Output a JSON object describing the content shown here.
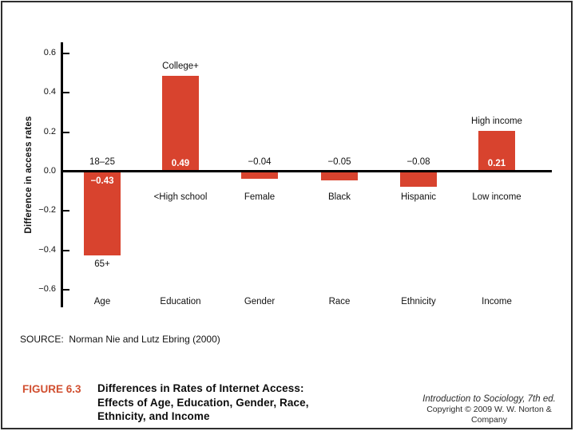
{
  "slide": {
    "source_line": "SOURCE:  Norman Nie and Lutz Ebring (2000)",
    "caption": {
      "figure_label": "FIGURE 6.3",
      "title": "Differences in Rates of Internet Access: Effects of Age, Education, Gender, Race, Ethnicity, and Income",
      "title_lines": [
        "Differences in Rates of Internet Access:",
        "Effects of Age, Education, Gender, Race,",
        "Ethnicity, and Income"
      ]
    },
    "credit": {
      "book_title": "Introduction to Sociology, 7th ed.",
      "copyright_line": "Copyright © 2009 W. W. Norton & Company"
    }
  },
  "chart_data": {
    "type": "bar",
    "title": "",
    "xlabel": "",
    "ylabel": "Difference in access rates",
    "ylim": [
      -0.6,
      0.6
    ],
    "grid": false,
    "legend": false,
    "yticks": [
      {
        "value": 0.6,
        "label": "0.6"
      },
      {
        "value": 0.4,
        "label": "0.4"
      },
      {
        "value": 0.2,
        "label": "0.2"
      },
      {
        "value": 0.0,
        "label": "0.0"
      },
      {
        "value": -0.2,
        "label": "−0.2"
      },
      {
        "value": -0.4,
        "label": "−0.4"
      },
      {
        "value": -0.6,
        "label": "−0.6"
      }
    ],
    "categories": [
      "Age",
      "Education",
      "Gender",
      "Race",
      "Ethnicity",
      "Income"
    ],
    "values": [
      -0.43,
      0.49,
      -0.04,
      -0.05,
      -0.08,
      0.21
    ],
    "bars": [
      {
        "category": "Age",
        "value": -0.43,
        "bar_value_label": "−0.43",
        "above_label": "18–25",
        "below_label": "65+"
      },
      {
        "category": "Education",
        "value": 0.49,
        "bar_value_label": "0.49",
        "above_label": "College+",
        "below_label": "<High school"
      },
      {
        "category": "Gender",
        "value": -0.04,
        "bar_value_label": "",
        "above_label": "−0.04",
        "below_label": "Female"
      },
      {
        "category": "Race",
        "value": -0.05,
        "bar_value_label": "",
        "above_label": "−0.05",
        "below_label": "Black"
      },
      {
        "category": "Ethnicity",
        "value": -0.08,
        "bar_value_label": "",
        "above_label": "−0.08",
        "below_label": "Hispanic"
      },
      {
        "category": "Income",
        "value": 0.21,
        "bar_value_label": "0.21",
        "above_label": "High income",
        "below_label": "Low income"
      }
    ],
    "colors": {
      "bar": "#d8432e",
      "axis": "#000000",
      "figure_label": "#d14f30"
    }
  }
}
